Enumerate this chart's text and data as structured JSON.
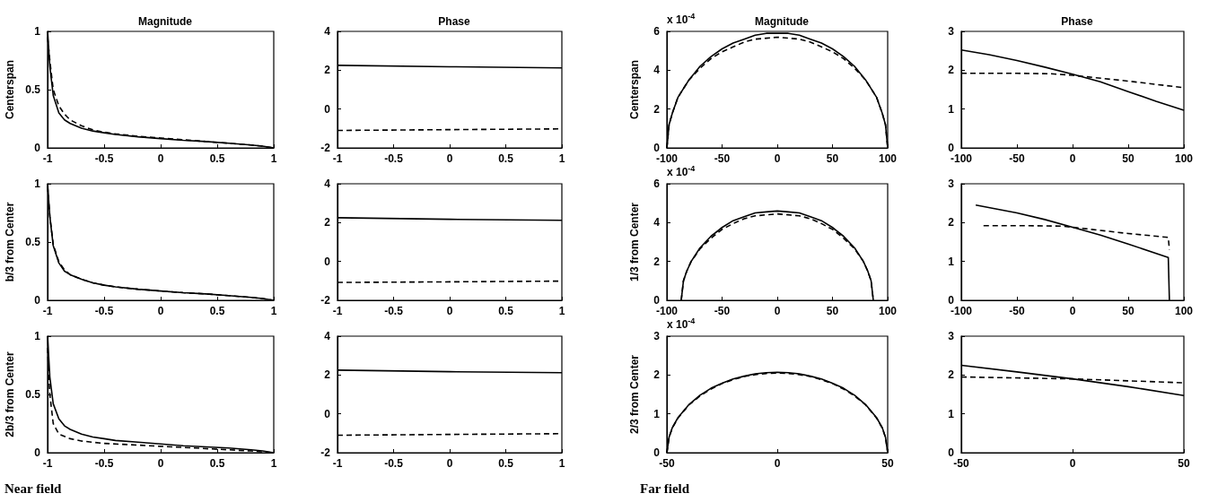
{
  "chart_data": [
    {
      "type": "line",
      "title": "Magnitude",
      "ylabel": "Centerspan",
      "xlim": [
        -1,
        1
      ],
      "xticks": [
        -1,
        -0.5,
        0,
        0.5,
        1
      ],
      "ylim": [
        0,
        1
      ],
      "yticks": [
        0,
        0.5,
        1
      ],
      "grid": false,
      "series": [
        {
          "color": "#000000",
          "line_style": "solid",
          "x": [
            -1,
            -0.98,
            -0.95,
            -0.9,
            -0.85,
            -0.8,
            -0.7,
            -0.6,
            -0.5,
            -0.4,
            -0.2,
            0,
            0.2,
            0.4,
            0.6,
            0.8,
            0.9,
            1
          ],
          "values": [
            1,
            0.7,
            0.45,
            0.3,
            0.24,
            0.21,
            0.17,
            0.145,
            0.13,
            0.115,
            0.095,
            0.08,
            0.065,
            0.055,
            0.04,
            0.025,
            0.015,
            0
          ]
        },
        {
          "color": "#000000",
          "line_style": "dashed",
          "x": [
            -1,
            -0.98,
            -0.95,
            -0.9,
            -0.85,
            -0.8,
            -0.7,
            -0.6,
            -0.5,
            -0.4,
            -0.2,
            0,
            0.2,
            0.4,
            0.6,
            0.8,
            0.9,
            1
          ],
          "values": [
            0.95,
            0.75,
            0.5,
            0.36,
            0.29,
            0.24,
            0.19,
            0.155,
            0.135,
            0.12,
            0.1,
            0.085,
            0.07,
            0.055,
            0.04,
            0.025,
            0.015,
            0
          ]
        }
      ]
    },
    {
      "type": "line",
      "title": "Phase",
      "xlim": [
        -1,
        1
      ],
      "xticks": [
        -1,
        -0.5,
        0,
        0.5,
        1
      ],
      "ylim": [
        -2,
        4
      ],
      "yticks": [
        -2,
        0,
        2,
        4
      ],
      "grid": false,
      "series": [
        {
          "color": "#000000",
          "line_style": "solid",
          "x": [
            -1,
            0,
            1
          ],
          "values": [
            2.25,
            2.18,
            2.12
          ]
        },
        {
          "color": "#000000",
          "line_style": "dashed",
          "x": [
            -1,
            0,
            1
          ],
          "values": [
            -1.1,
            -1.06,
            -1.02
          ]
        }
      ]
    },
    {
      "type": "line",
      "title": "Magnitude",
      "ylabel": "Centerspan",
      "annotations": [
        "x 10$^{-4}$"
      ],
      "xlim": [
        -100,
        100
      ],
      "xticks": [
        -100,
        -50,
        0,
        50,
        100
      ],
      "ylim": [
        0,
        6
      ],
      "yticks": [
        0,
        2,
        4,
        6
      ],
      "grid": false,
      "series": [
        {
          "color": "#000000",
          "line_style": "solid",
          "x": [
            -100,
            -98,
            -95,
            -90,
            -80,
            -70,
            -60,
            -50,
            -40,
            -30,
            -20,
            -10,
            0,
            10,
            20,
            30,
            40,
            50,
            60,
            70,
            80,
            90,
            95,
            98,
            100
          ],
          "values": [
            0,
            1.2,
            1.8,
            2.6,
            3.5,
            4.2,
            4.7,
            5.1,
            5.4,
            5.6,
            5.8,
            5.9,
            5.9,
            5.9,
            5.8,
            5.6,
            5.4,
            5.1,
            4.7,
            4.2,
            3.5,
            2.6,
            1.8,
            1.2,
            0
          ]
        },
        {
          "color": "#000000",
          "line_style": "dashed",
          "x": [
            -100,
            -98,
            -95,
            -90,
            -80,
            -70,
            -60,
            -50,
            -40,
            -30,
            -20,
            -10,
            0,
            10,
            20,
            30,
            40,
            50,
            60,
            70,
            80,
            90,
            95,
            98,
            100
          ],
          "values": [
            0,
            1.2,
            1.8,
            2.6,
            3.5,
            4.1,
            4.6,
            4.95,
            5.2,
            5.45,
            5.6,
            5.65,
            5.7,
            5.65,
            5.6,
            5.45,
            5.2,
            4.95,
            4.6,
            4.1,
            3.5,
            2.6,
            1.8,
            1.2,
            0
          ]
        }
      ]
    },
    {
      "type": "line",
      "title": "Phase",
      "xlim": [
        -100,
        100
      ],
      "xticks": [
        -100,
        -50,
        0,
        50,
        100
      ],
      "ylim": [
        0,
        3
      ],
      "yticks": [
        0,
        1,
        2,
        3
      ],
      "grid": false,
      "series": [
        {
          "color": "#000000",
          "line_style": "solid",
          "x": [
            -100,
            -75,
            -50,
            -25,
            0,
            25,
            50,
            75,
            100
          ],
          "values": [
            2.52,
            2.4,
            2.25,
            2.08,
            1.9,
            1.7,
            1.45,
            1.2,
            0.97
          ]
        },
        {
          "color": "#000000",
          "line_style": "dashed",
          "x": [
            -100,
            -50,
            -20,
            0,
            50,
            100
          ],
          "values": [
            1.92,
            1.92,
            1.91,
            1.87,
            1.72,
            1.55
          ]
        }
      ]
    },
    {
      "type": "line",
      "ylabel": "b/3 from Center",
      "xlim": [
        -1,
        1
      ],
      "xticks": [
        -1,
        -0.5,
        0,
        0.5,
        1
      ],
      "ylim": [
        0,
        1
      ],
      "yticks": [
        0,
        0.5,
        1
      ],
      "grid": false,
      "series": [
        {
          "color": "#000000",
          "line_style": "solid",
          "x": [
            -1,
            -0.98,
            -0.95,
            -0.9,
            -0.85,
            -0.8,
            -0.7,
            -0.6,
            -0.5,
            -0.4,
            -0.2,
            0,
            0.2,
            0.4,
            0.6,
            0.8,
            0.9,
            1
          ],
          "values": [
            1,
            0.72,
            0.47,
            0.32,
            0.25,
            0.22,
            0.18,
            0.15,
            0.13,
            0.115,
            0.095,
            0.08,
            0.065,
            0.055,
            0.04,
            0.025,
            0.015,
            0
          ]
        },
        {
          "color": "#000000",
          "line_style": "dashed",
          "x": [
            -1,
            -0.98,
            -0.95,
            -0.9,
            -0.85,
            -0.8,
            -0.7,
            -0.6,
            -0.5,
            -0.4,
            -0.2,
            0,
            0.2,
            0.4,
            0.6,
            0.8,
            0.9,
            1
          ],
          "values": [
            0.98,
            0.72,
            0.48,
            0.33,
            0.26,
            0.22,
            0.18,
            0.15,
            0.13,
            0.115,
            0.095,
            0.08,
            0.065,
            0.055,
            0.04,
            0.025,
            0.015,
            0
          ]
        }
      ]
    },
    {
      "type": "line",
      "xlim": [
        -1,
        1
      ],
      "xticks": [
        -1,
        -0.5,
        0,
        0.5,
        1
      ],
      "ylim": [
        -2,
        4
      ],
      "yticks": [
        -2,
        0,
        2,
        4
      ],
      "grid": false,
      "series": [
        {
          "color": "#000000",
          "line_style": "solid",
          "x": [
            -1,
            0,
            1
          ],
          "values": [
            2.25,
            2.17,
            2.12
          ]
        },
        {
          "color": "#000000",
          "line_style": "dashed",
          "x": [
            -1,
            0,
            1
          ],
          "values": [
            -1.08,
            -1.05,
            -1.01
          ]
        }
      ]
    },
    {
      "type": "line",
      "ylabel": "1/3 from Center",
      "annotations": [
        "x 10$^{-4}$"
      ],
      "xlim": [
        -100,
        100
      ],
      "xticks": [
        -100,
        -50,
        0,
        50,
        100
      ],
      "ylim": [
        0,
        6
      ],
      "yticks": [
        0,
        2,
        4,
        6
      ],
      "grid": false,
      "series": [
        {
          "color": "#000000",
          "line_style": "solid",
          "x": [
            -87,
            -85,
            -82,
            -78,
            -70,
            -60,
            -50,
            -40,
            -30,
            -20,
            -10,
            0,
            10,
            20,
            30,
            40,
            50,
            60,
            70,
            78,
            82,
            85,
            87
          ],
          "values": [
            0,
            1,
            1.5,
            2,
            2.7,
            3.3,
            3.75,
            4.1,
            4.3,
            4.5,
            4.55,
            4.6,
            4.55,
            4.5,
            4.3,
            4.1,
            3.75,
            3.3,
            2.7,
            2,
            1.5,
            1,
            0
          ]
        },
        {
          "color": "#000000",
          "line_style": "dashed",
          "x": [
            -87,
            -85,
            -82,
            -78,
            -70,
            -60,
            -50,
            -40,
            -30,
            -20,
            -10,
            0,
            10,
            20,
            30,
            40,
            50,
            60,
            70,
            78,
            82,
            85,
            87
          ],
          "values": [
            0,
            1,
            1.5,
            2,
            2.65,
            3.2,
            3.65,
            3.95,
            4.2,
            4.35,
            4.4,
            4.45,
            4.4,
            4.35,
            4.2,
            3.95,
            3.65,
            3.2,
            2.65,
            2,
            1.5,
            1,
            0
          ]
        }
      ]
    },
    {
      "type": "line",
      "xlim": [
        -100,
        100
      ],
      "xticks": [
        -100,
        -50,
        0,
        50,
        100
      ],
      "ylim": [
        0,
        3
      ],
      "yticks": [
        0,
        1,
        2,
        3
      ],
      "grid": false,
      "series": [
        {
          "color": "#000000",
          "line_style": "solid",
          "x": [
            -87,
            -50,
            -25,
            0,
            25,
            50,
            86,
            87
          ],
          "values": [
            2.45,
            2.25,
            2.08,
            1.88,
            1.68,
            1.45,
            1.1,
            0
          ]
        },
        {
          "color": "#000000",
          "line_style": "dashed",
          "x": [
            -80,
            -40,
            -10,
            0,
            50,
            86,
            87
          ],
          "values": [
            1.92,
            1.92,
            1.91,
            1.88,
            1.72,
            1.62,
            1.3
          ]
        }
      ]
    },
    {
      "type": "line",
      "ylabel": "2b/3 from Center",
      "annotations": [
        "Near field"
      ],
      "xlim": [
        -1,
        1
      ],
      "xticks": [
        -1,
        -0.5,
        0,
        0.5,
        1
      ],
      "ylim": [
        0,
        1
      ],
      "yticks": [
        0,
        0.5,
        1
      ],
      "grid": false,
      "series": [
        {
          "color": "#000000",
          "line_style": "solid",
          "x": [
            -1,
            -0.98,
            -0.95,
            -0.9,
            -0.85,
            -0.8,
            -0.7,
            -0.6,
            -0.5,
            -0.4,
            -0.2,
            0,
            0.2,
            0.4,
            0.6,
            0.8,
            0.9,
            1
          ],
          "values": [
            1,
            0.65,
            0.42,
            0.29,
            0.23,
            0.2,
            0.16,
            0.135,
            0.12,
            0.105,
            0.09,
            0.075,
            0.06,
            0.05,
            0.04,
            0.025,
            0.015,
            0
          ]
        },
        {
          "color": "#000000",
          "line_style": "dashed",
          "x": [
            -1,
            -0.98,
            -0.95,
            -0.9,
            -0.8,
            -0.7,
            -0.5,
            -0.3,
            0,
            0.3,
            0.6,
            0.8,
            1
          ],
          "values": [
            0.9,
            0.5,
            0.25,
            0.16,
            0.12,
            0.1,
            0.08,
            0.07,
            0.055,
            0.04,
            0.025,
            0.015,
            0
          ]
        }
      ]
    },
    {
      "type": "line",
      "xlim": [
        -1,
        1
      ],
      "xticks": [
        -1,
        -0.5,
        0,
        0.5,
        1
      ],
      "ylim": [
        -2,
        4
      ],
      "yticks": [
        -2,
        0,
        2,
        4
      ],
      "grid": false,
      "series": [
        {
          "color": "#000000",
          "line_style": "solid",
          "x": [
            -1,
            0,
            1
          ],
          "values": [
            2.25,
            2.17,
            2.12
          ]
        },
        {
          "color": "#000000",
          "line_style": "dashed",
          "x": [
            -1,
            0,
            1
          ],
          "values": [
            -1.1,
            -1.06,
            -1.02
          ]
        }
      ]
    },
    {
      "type": "line",
      "ylabel": "2/3 from Center",
      "annotations": [
        "x 10$^{-4}$",
        "Far field"
      ],
      "xlim": [
        -50,
        50
      ],
      "xticks": [
        -50,
        0,
        50
      ],
      "ylim": [
        0,
        3
      ],
      "yticks": [
        0,
        1,
        2,
        3
      ],
      "grid": false,
      "series": [
        {
          "color": "#000000",
          "line_style": "solid",
          "x": [
            -50,
            -49,
            -47.5,
            -45,
            -40,
            -35,
            -30,
            -25,
            -20,
            -15,
            -10,
            -5,
            0,
            5,
            10,
            15,
            20,
            25,
            30,
            35,
            40,
            45,
            47.5,
            49,
            50
          ],
          "values": [
            0,
            0.4,
            0.65,
            0.9,
            1.24,
            1.48,
            1.66,
            1.79,
            1.9,
            1.97,
            2.03,
            2.06,
            2.07,
            2.06,
            2.03,
            1.97,
            1.9,
            1.79,
            1.66,
            1.48,
            1.24,
            0.9,
            0.65,
            0.4,
            0
          ]
        },
        {
          "color": "#000000",
          "line_style": "dashed",
          "x": [
            -50,
            -49,
            -47.5,
            -45,
            -40,
            -35,
            -30,
            -25,
            -20,
            -15,
            -10,
            -5,
            0,
            5,
            10,
            15,
            20,
            25,
            30,
            35,
            40,
            45,
            47.5,
            49,
            50
          ],
          "values": [
            0,
            0.4,
            0.64,
            0.89,
            1.23,
            1.46,
            1.64,
            1.78,
            1.88,
            1.96,
            2.01,
            2.04,
            2.05,
            2.04,
            2.01,
            1.96,
            1.88,
            1.78,
            1.64,
            1.46,
            1.23,
            0.89,
            0.64,
            0.4,
            0
          ]
        }
      ]
    },
    {
      "type": "line",
      "xlim": [
        -50,
        50
      ],
      "xticks": [
        -50,
        0,
        50
      ],
      "ylim": [
        0,
        3
      ],
      "yticks": [
        0,
        1,
        2,
        3
      ],
      "grid": false,
      "series": [
        {
          "color": "#000000",
          "line_style": "solid",
          "x": [
            -50,
            -25,
            0,
            25,
            50
          ],
          "values": [
            2.25,
            2.08,
            1.9,
            1.7,
            1.47
          ]
        },
        {
          "color": "#000000",
          "line_style": "dashed",
          "x": [
            -50,
            0,
            50
          ],
          "values": [
            1.95,
            1.9,
            1.8
          ]
        }
      ]
    }
  ]
}
